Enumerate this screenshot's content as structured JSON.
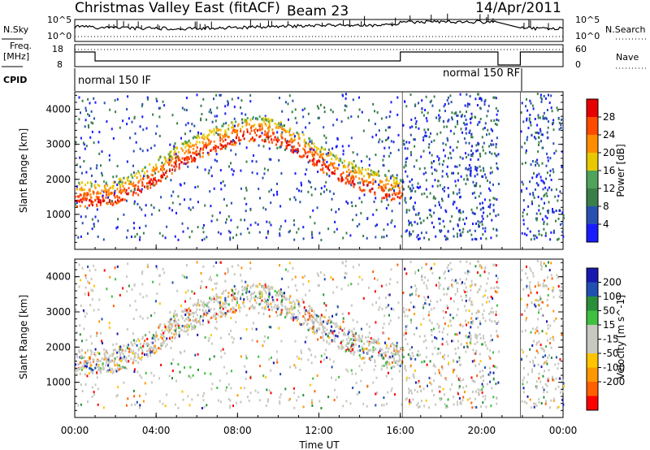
{
  "header": {
    "title": "Christmas Valley East (fitACF)",
    "beam": "Beam 23",
    "date": "14/Apr/2011"
  },
  "summary_labels": {
    "nsky": "N.Sky",
    "noise_left_top": "10^5",
    "noise_left_bottom": "10^0",
    "noise_right_top": "10^5",
    "noise_right_bottom": "10^0",
    "nsearch": "N.Search",
    "freq_title": "Freq.",
    "freq_unit": "[MHz]",
    "freq_top": "18",
    "freq_bottom": "8",
    "nave_top": "60",
    "nave_bottom": "0",
    "nave": "Nave",
    "cpid": "CPID",
    "mode1": "normal 150 IF",
    "mode2": "normal 150 RF"
  },
  "colors": {
    "power": [
      "#1a1aff",
      "#2850b0",
      "#3a7f4a",
      "#4fa35a",
      "#e8c800",
      "#ff8c00",
      "#ff4a00",
      "#e60000"
    ],
    "velocity": [
      "#ff0000",
      "#ff6000",
      "#ff9800",
      "#ffc600",
      "#c8c8c0",
      "#c8c8c0",
      "#40c040",
      "#2a8f3a",
      "#2050b0",
      "#1818b0"
    ]
  },
  "chart_data": [
    {
      "type": "heatmap",
      "name": "power",
      "ylabel": "Slant Range [km]",
      "xlabel": "",
      "ylim": [
        0,
        4500
      ],
      "yticks": [
        "1000",
        "2000",
        "3000",
        "4000"
      ],
      "colorbar_label": "Power [dB]",
      "colorbar_ticks": [
        "4",
        "8",
        "12",
        "16",
        "20",
        "24",
        "28"
      ],
      "colorbar_range": [
        0,
        32
      ],
      "scatter_band": [
        {
          "t": 1.0,
          "r": 1400
        },
        {
          "t": 2.0,
          "r": 1450
        },
        {
          "t": 3.0,
          "r": 1700
        },
        {
          "t": 4.0,
          "r": 2050
        },
        {
          "t": 5.0,
          "r": 2450
        },
        {
          "t": 6.0,
          "r": 2750
        },
        {
          "t": 7.0,
          "r": 3000
        },
        {
          "t": 8.0,
          "r": 3200
        },
        {
          "t": 9.0,
          "r": 3300
        },
        {
          "t": 10.0,
          "r": 3150
        },
        {
          "t": 11.0,
          "r": 2850
        },
        {
          "t": 12.0,
          "r": 2450
        },
        {
          "t": 13.0,
          "r": 2100
        },
        {
          "t": 14.0,
          "r": 1850
        },
        {
          "t": 15.0,
          "r": 1650
        },
        {
          "t": 16.0,
          "r": 1500
        }
      ]
    },
    {
      "type": "heatmap",
      "name": "velocity",
      "ylabel": "Slant Range [km]",
      "xlabel": "Time UT",
      "ylim": [
        0,
        4500
      ],
      "yticks": [
        "1000",
        "2000",
        "3000",
        "4000"
      ],
      "xticks": [
        "00:00",
        "04:00",
        "08:00",
        "12:00",
        "16:00",
        "20:00",
        "00:00"
      ],
      "colorbar_label": "Velocity [m s^-1]",
      "colorbar_ticks": [
        "200",
        "100",
        "50",
        "15",
        "-15",
        "-50",
        "-100",
        "-200"
      ]
    }
  ]
}
